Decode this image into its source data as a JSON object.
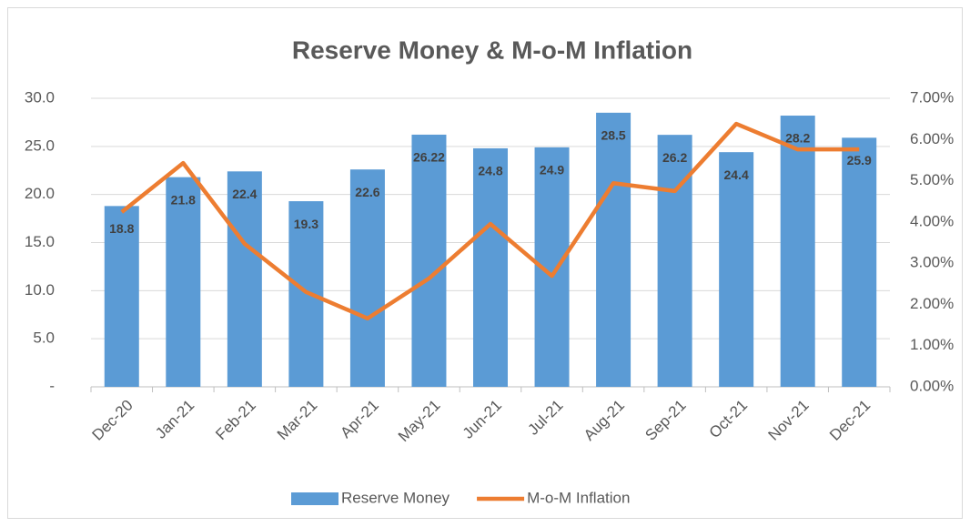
{
  "chart_data": {
    "type": "combo",
    "title": "Reserve Money & M-o-M Inflation",
    "categories": [
      "Dec-20",
      "Jan-21",
      "Feb-21",
      "Mar-21",
      "Apr-21",
      "May-21",
      "Jun-21",
      "Jul-21",
      "Aug-21",
      "Sep-21",
      "Oct-21",
      "Nov-21",
      "Dec-21"
    ],
    "series": [
      {
        "name": "Reserve Money",
        "type": "bar",
        "color": "#5b9bd5",
        "values": [
          18.8,
          21.8,
          22.4,
          19.3,
          22.6,
          26.22,
          24.8,
          24.9,
          28.5,
          26.2,
          24.4,
          28.2,
          25.9
        ]
      },
      {
        "name": "M-o-M Inflation",
        "type": "line",
        "axis": "y2",
        "color": "#ed7d31",
        "values": [
          4.24,
          5.43,
          3.47,
          2.3,
          1.66,
          2.63,
          3.95,
          2.69,
          4.94,
          4.75,
          6.38,
          5.76,
          5.76
        ]
      }
    ],
    "ylim": [
      0,
      30
    ],
    "yticks": [
      {
        "value": 0,
        "label": "-"
      },
      {
        "value": 5,
        "label": "5.0"
      },
      {
        "value": 10,
        "label": "10.0"
      },
      {
        "value": 15,
        "label": "15.0"
      },
      {
        "value": 20,
        "label": "20.0"
      },
      {
        "value": 25,
        "label": "25.0"
      },
      {
        "value": 30,
        "label": "30.0"
      }
    ],
    "y2lim": [
      0,
      7
    ],
    "y2ticks": [
      {
        "value": 0,
        "label": "0.00%"
      },
      {
        "value": 1,
        "label": "1.00%"
      },
      {
        "value": 2,
        "label": "2.00%"
      },
      {
        "value": 3,
        "label": "3.00%"
      },
      {
        "value": 4,
        "label": "4.00%"
      },
      {
        "value": 5,
        "label": "5.00%"
      },
      {
        "value": 6,
        "label": "6.00%"
      },
      {
        "value": 7,
        "label": "7.00%"
      }
    ],
    "grid": true,
    "legend": "bottom"
  }
}
